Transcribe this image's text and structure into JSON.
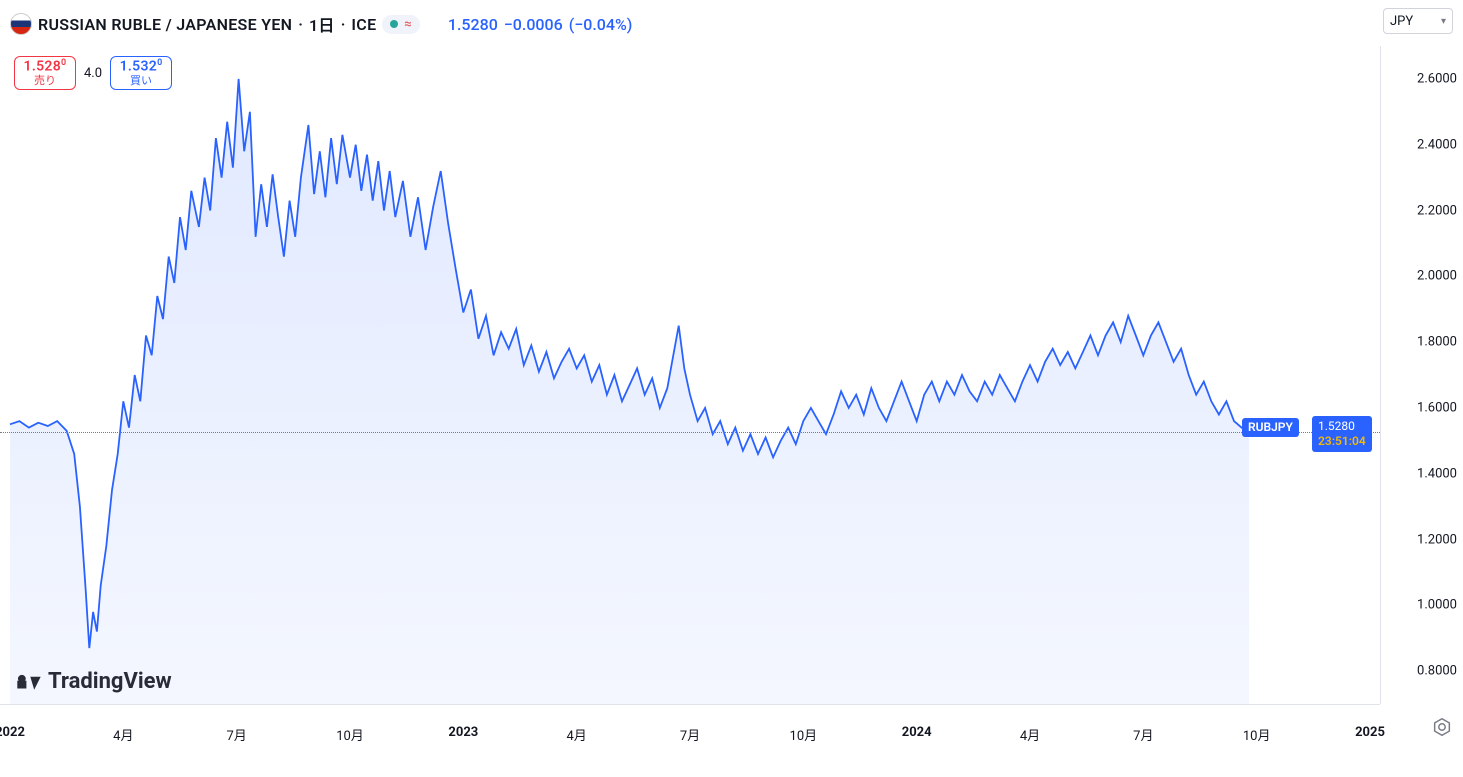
{
  "header": {
    "pair": "RUSSIAN RUBLE / JAPANESE YEN",
    "interval": "1日",
    "exchange": "ICE",
    "last": "1.5280",
    "change": "−0.0006",
    "change_pct": "(−0.04%)",
    "status_approx": "≈"
  },
  "currency_dropdown": {
    "value": "JPY"
  },
  "bidask": {
    "sell_value": "1.528",
    "sell_sup": "0",
    "sell_label": "売り",
    "spread": "4.0",
    "buy_value": "1.532",
    "buy_sup": "0",
    "buy_label": "買い"
  },
  "watermark": "TradingView",
  "price_tag": {
    "symbol": "RUBJPY",
    "price": "1.5280",
    "time": "23:51:04"
  },
  "chart": {
    "type": "area",
    "line_color": "#2962ff",
    "fill_color": "rgba(41,98,255,0.08)",
    "line_width": 1.8,
    "background": "#ffffff",
    "grid_color": "#e0e3eb",
    "ylim": [
      0.7,
      2.7
    ],
    "y_ticks": [
      2.6,
      2.4,
      2.2,
      2.0,
      1.8,
      1.6,
      1.4,
      1.2,
      1.0,
      0.8
    ],
    "y_tick_labels": [
      "2.6000",
      "2.4000",
      "2.2000",
      "2.0000",
      "1.8000",
      "1.6000",
      "1.4000",
      "1.2000",
      "1.0000",
      "0.8000"
    ],
    "x_range_months": [
      0,
      36
    ],
    "x_ticks": [
      {
        "m": 0,
        "label": "2022",
        "bold": true
      },
      {
        "m": 3,
        "label": "4月"
      },
      {
        "m": 6,
        "label": "7月"
      },
      {
        "m": 9,
        "label": "10月"
      },
      {
        "m": 12,
        "label": "2023",
        "bold": true
      },
      {
        "m": 15,
        "label": "4月"
      },
      {
        "m": 18,
        "label": "7月"
      },
      {
        "m": 21,
        "label": "10月"
      },
      {
        "m": 24,
        "label": "2024",
        "bold": true
      },
      {
        "m": 27,
        "label": "4月"
      },
      {
        "m": 30,
        "label": "7月"
      },
      {
        "m": 33,
        "label": "10月"
      },
      {
        "m": 36,
        "label": "2025",
        "bold": true
      }
    ],
    "series_last_m": 32.8,
    "series": [
      [
        0.0,
        1.55
      ],
      [
        0.25,
        1.56
      ],
      [
        0.5,
        1.54
      ],
      [
        0.75,
        1.555
      ],
      [
        1.0,
        1.545
      ],
      [
        1.25,
        1.56
      ],
      [
        1.5,
        1.53
      ],
      [
        1.7,
        1.46
      ],
      [
        1.85,
        1.3
      ],
      [
        2.0,
        1.05
      ],
      [
        2.1,
        0.87
      ],
      [
        2.2,
        0.98
      ],
      [
        2.3,
        0.92
      ],
      [
        2.4,
        1.06
      ],
      [
        2.55,
        1.18
      ],
      [
        2.7,
        1.35
      ],
      [
        2.85,
        1.46
      ],
      [
        3.0,
        1.62
      ],
      [
        3.15,
        1.54
      ],
      [
        3.3,
        1.7
      ],
      [
        3.45,
        1.62
      ],
      [
        3.6,
        1.82
      ],
      [
        3.75,
        1.76
      ],
      [
        3.9,
        1.94
      ],
      [
        4.05,
        1.87
      ],
      [
        4.2,
        2.06
      ],
      [
        4.35,
        1.98
      ],
      [
        4.5,
        2.18
      ],
      [
        4.65,
        2.08
      ],
      [
        4.8,
        2.26
      ],
      [
        5.0,
        2.15
      ],
      [
        5.15,
        2.3
      ],
      [
        5.3,
        2.2
      ],
      [
        5.45,
        2.42
      ],
      [
        5.6,
        2.3
      ],
      [
        5.75,
        2.47
      ],
      [
        5.9,
        2.33
      ],
      [
        6.05,
        2.6
      ],
      [
        6.2,
        2.38
      ],
      [
        6.35,
        2.5
      ],
      [
        6.5,
        2.12
      ],
      [
        6.65,
        2.28
      ],
      [
        6.8,
        2.15
      ],
      [
        6.95,
        2.31
      ],
      [
        7.1,
        2.18
      ],
      [
        7.25,
        2.06
      ],
      [
        7.4,
        2.23
      ],
      [
        7.55,
        2.12
      ],
      [
        7.7,
        2.3
      ],
      [
        7.9,
        2.46
      ],
      [
        8.05,
        2.25
      ],
      [
        8.2,
        2.38
      ],
      [
        8.35,
        2.24
      ],
      [
        8.5,
        2.42
      ],
      [
        8.65,
        2.28
      ],
      [
        8.8,
        2.43
      ],
      [
        9.0,
        2.3
      ],
      [
        9.15,
        2.4
      ],
      [
        9.3,
        2.26
      ],
      [
        9.45,
        2.37
      ],
      [
        9.6,
        2.23
      ],
      [
        9.75,
        2.35
      ],
      [
        9.9,
        2.2
      ],
      [
        10.05,
        2.32
      ],
      [
        10.2,
        2.18
      ],
      [
        10.4,
        2.29
      ],
      [
        10.6,
        2.12
      ],
      [
        10.8,
        2.24
      ],
      [
        11.0,
        2.08
      ],
      [
        11.2,
        2.21
      ],
      [
        11.4,
        2.32
      ],
      [
        11.6,
        2.16
      ],
      [
        11.8,
        2.02
      ],
      [
        12.0,
        1.89
      ],
      [
        12.2,
        1.96
      ],
      [
        12.4,
        1.81
      ],
      [
        12.6,
        1.88
      ],
      [
        12.8,
        1.76
      ],
      [
        13.0,
        1.83
      ],
      [
        13.2,
        1.78
      ],
      [
        13.4,
        1.84
      ],
      [
        13.6,
        1.73
      ],
      [
        13.8,
        1.79
      ],
      [
        14.0,
        1.71
      ],
      [
        14.2,
        1.77
      ],
      [
        14.4,
        1.69
      ],
      [
        14.6,
        1.74
      ],
      [
        14.8,
        1.78
      ],
      [
        15.0,
        1.72
      ],
      [
        15.2,
        1.76
      ],
      [
        15.4,
        1.68
      ],
      [
        15.6,
        1.73
      ],
      [
        15.8,
        1.64
      ],
      [
        16.0,
        1.7
      ],
      [
        16.2,
        1.62
      ],
      [
        16.4,
        1.67
      ],
      [
        16.6,
        1.72
      ],
      [
        16.8,
        1.64
      ],
      [
        17.0,
        1.69
      ],
      [
        17.2,
        1.6
      ],
      [
        17.4,
        1.66
      ],
      [
        17.7,
        1.85
      ],
      [
        17.85,
        1.72
      ],
      [
        18.0,
        1.64
      ],
      [
        18.2,
        1.56
      ],
      [
        18.4,
        1.6
      ],
      [
        18.6,
        1.52
      ],
      [
        18.8,
        1.56
      ],
      [
        19.0,
        1.49
      ],
      [
        19.2,
        1.54
      ],
      [
        19.4,
        1.47
      ],
      [
        19.6,
        1.52
      ],
      [
        19.8,
        1.46
      ],
      [
        20.0,
        1.51
      ],
      [
        20.2,
        1.45
      ],
      [
        20.4,
        1.5
      ],
      [
        20.6,
        1.54
      ],
      [
        20.8,
        1.49
      ],
      [
        21.0,
        1.56
      ],
      [
        21.2,
        1.6
      ],
      [
        21.4,
        1.56
      ],
      [
        21.6,
        1.52
      ],
      [
        21.8,
        1.58
      ],
      [
        22.0,
        1.65
      ],
      [
        22.2,
        1.6
      ],
      [
        22.4,
        1.64
      ],
      [
        22.6,
        1.58
      ],
      [
        22.8,
        1.66
      ],
      [
        23.0,
        1.6
      ],
      [
        23.2,
        1.56
      ],
      [
        23.4,
        1.62
      ],
      [
        23.6,
        1.68
      ],
      [
        23.8,
        1.62
      ],
      [
        24.0,
        1.56
      ],
      [
        24.2,
        1.64
      ],
      [
        24.4,
        1.68
      ],
      [
        24.6,
        1.62
      ],
      [
        24.8,
        1.68
      ],
      [
        25.0,
        1.64
      ],
      [
        25.2,
        1.7
      ],
      [
        25.4,
        1.65
      ],
      [
        25.6,
        1.62
      ],
      [
        25.8,
        1.68
      ],
      [
        26.0,
        1.64
      ],
      [
        26.2,
        1.7
      ],
      [
        26.4,
        1.66
      ],
      [
        26.6,
        1.62
      ],
      [
        26.8,
        1.68
      ],
      [
        27.0,
        1.73
      ],
      [
        27.2,
        1.68
      ],
      [
        27.4,
        1.74
      ],
      [
        27.6,
        1.78
      ],
      [
        27.8,
        1.73
      ],
      [
        28.0,
        1.77
      ],
      [
        28.2,
        1.72
      ],
      [
        28.4,
        1.77
      ],
      [
        28.6,
        1.82
      ],
      [
        28.8,
        1.76
      ],
      [
        29.0,
        1.82
      ],
      [
        29.2,
        1.86
      ],
      [
        29.4,
        1.8
      ],
      [
        29.6,
        1.88
      ],
      [
        29.8,
        1.82
      ],
      [
        30.0,
        1.76
      ],
      [
        30.2,
        1.82
      ],
      [
        30.4,
        1.86
      ],
      [
        30.6,
        1.8
      ],
      [
        30.8,
        1.74
      ],
      [
        31.0,
        1.78
      ],
      [
        31.2,
        1.7
      ],
      [
        31.4,
        1.64
      ],
      [
        31.6,
        1.68
      ],
      [
        31.8,
        1.62
      ],
      [
        32.0,
        1.58
      ],
      [
        32.2,
        1.62
      ],
      [
        32.4,
        1.56
      ],
      [
        32.6,
        1.54
      ],
      [
        32.8,
        1.528
      ]
    ]
  }
}
